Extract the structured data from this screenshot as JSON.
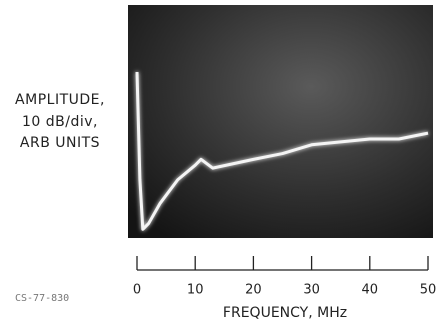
{
  "chart_data": {
    "type": "line",
    "y_label": [
      "AMPLITUDE,",
      "10 dB/div,",
      "ARB UNITS"
    ],
    "x_label": "FREQUENCY, MHz",
    "annotation": "CS-77-830",
    "x": [
      0,
      0.5,
      1,
      2,
      4,
      7,
      10,
      11,
      13,
      20,
      25,
      30,
      35,
      40,
      45,
      50
    ],
    "series": [
      {
        "color": "#f4f4f4",
        "values": [
          57,
          20,
          3,
          5,
          12,
          20,
          25,
          27,
          24,
          27,
          29,
          32,
          33,
          34,
          34,
          36
        ]
      }
    ],
    "xlim": [
      0,
      50
    ],
    "xticks": [
      0,
      10,
      20,
      30,
      40,
      50
    ],
    "ylim": [
      0,
      80
    ]
  }
}
